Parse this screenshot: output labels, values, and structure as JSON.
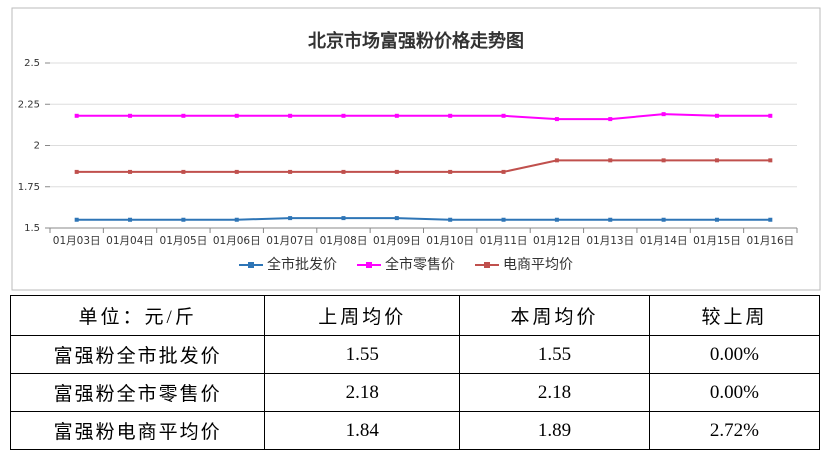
{
  "chart_data": {
    "type": "line",
    "title": "北京市场富强粉价格走势图",
    "categories": [
      "01月03日",
      "01月04日",
      "01月05日",
      "01月06日",
      "01月07日",
      "01月08日",
      "01月09日",
      "01月10日",
      "01月11日",
      "01月12日",
      "01月13日",
      "01月14日",
      "01月15日",
      "01月16日"
    ],
    "series": [
      {
        "name": "全市批发价",
        "color": "#2e75b6",
        "values": [
          1.55,
          1.55,
          1.55,
          1.55,
          1.56,
          1.56,
          1.56,
          1.55,
          1.55,
          1.55,
          1.55,
          1.55,
          1.55,
          1.55
        ]
      },
      {
        "name": "全市零售价",
        "color": "#ff00ff",
        "values": [
          2.18,
          2.18,
          2.18,
          2.18,
          2.18,
          2.18,
          2.18,
          2.18,
          2.18,
          2.16,
          2.16,
          2.19,
          2.18,
          2.18
        ]
      },
      {
        "name": "电商平均价",
        "color": "#c0504d",
        "values": [
          1.84,
          1.84,
          1.84,
          1.84,
          1.84,
          1.84,
          1.84,
          1.84,
          1.84,
          1.91,
          1.91,
          1.91,
          1.91,
          1.91
        ]
      }
    ],
    "ylim": [
      1.5,
      2.5
    ],
    "yticks": [
      1.5,
      1.75,
      2,
      2.25,
      2.5
    ],
    "grid": true,
    "legend": "bottom"
  },
  "table": {
    "rows": [
      [
        "单位：元/斤",
        "上周均价",
        "本周均价",
        "较上周"
      ],
      [
        "富强粉全市批发价",
        "1.55",
        "1.55",
        "0.00%"
      ],
      [
        "富强粉全市零售价",
        "2.18",
        "2.18",
        "0.00%"
      ],
      [
        "富强粉电商平均价",
        "1.84",
        "1.89",
        "2.72%"
      ]
    ]
  }
}
